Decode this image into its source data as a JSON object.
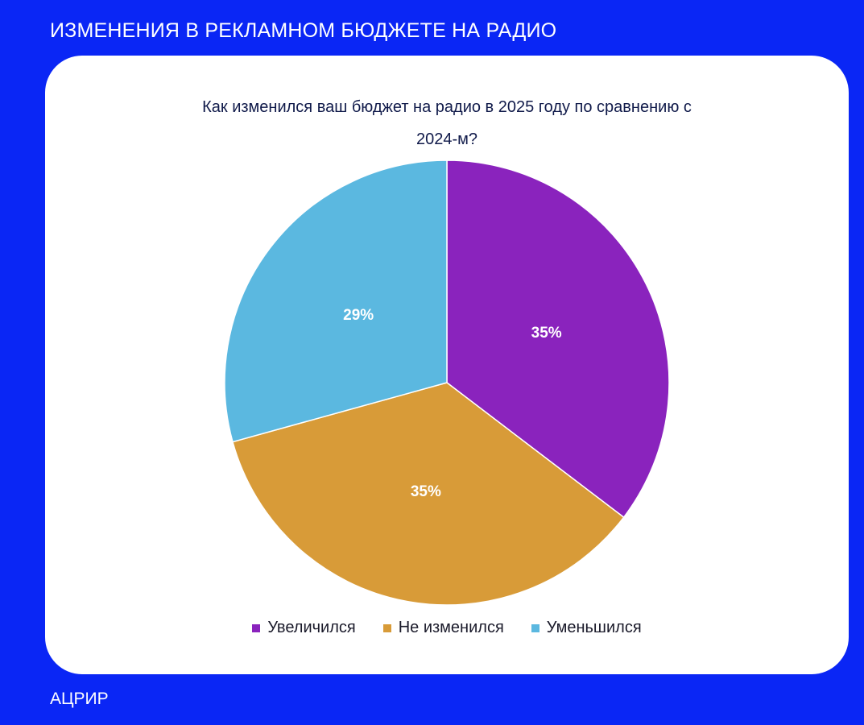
{
  "slide": {
    "title": "ИЗМЕНЕНИЯ В РЕКЛАМНОМ БЮДЖЕТЕ НА РАДИО",
    "footer": "АЦРИР"
  },
  "chart_data": {
    "type": "pie",
    "title_lines": [
      "Как изменился ваш бюджет на радио в 2025 году по сравнению с",
      "2024-м?"
    ],
    "slices": [
      {
        "label": "Увеличился",
        "value": 35,
        "display": "35%",
        "color": "#8a23bd"
      },
      {
        "label": "Не изменился",
        "value": 35,
        "display": "35%",
        "color": "#d89b38"
      },
      {
        "label": "Уменьшился",
        "value": 29,
        "display": "29%",
        "color": "#5bb8e0"
      }
    ],
    "legend_position": "bottom",
    "start_angle": "12 o'clock",
    "direction": "clockwise"
  },
  "colors": {
    "background": "#0a26f5",
    "card": "#ffffff",
    "slice_border": "#ffffff"
  }
}
